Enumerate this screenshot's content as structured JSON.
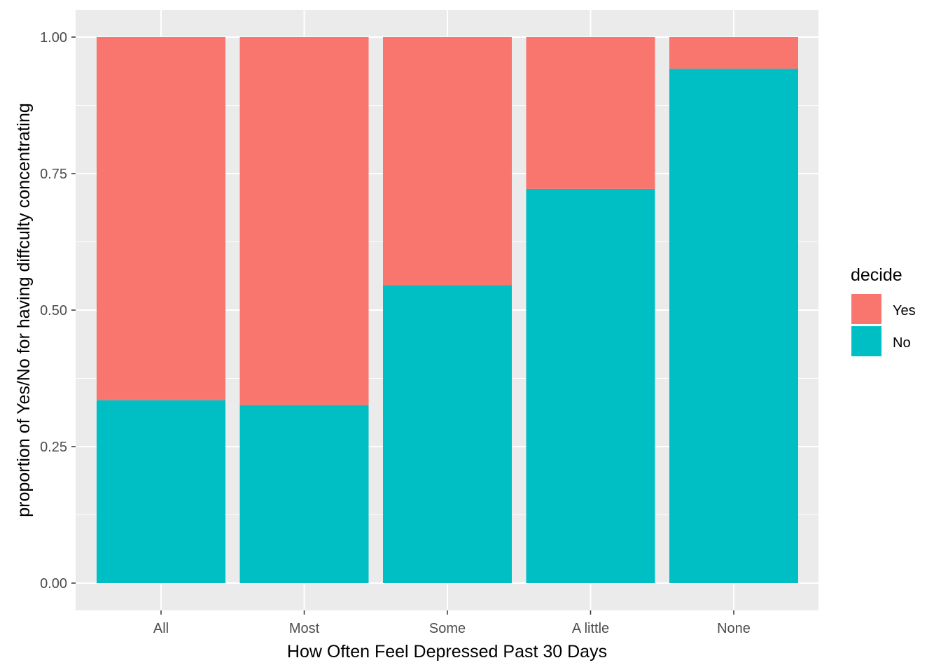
{
  "chart_data": {
    "type": "bar",
    "stacked": true,
    "categories": [
      "All",
      "Most",
      "Some",
      "A little",
      "None"
    ],
    "series": [
      {
        "name": "No",
        "values": [
          0.335,
          0.326,
          0.546,
          0.722,
          0.942
        ],
        "color": "#00BFC4"
      },
      {
        "name": "Yes",
        "values": [
          0.665,
          0.674,
          0.454,
          0.278,
          0.058
        ],
        "color": "#F8766D"
      }
    ],
    "xlabel": "How Often Feel Depressed Past 30 Days",
    "ylabel": "proportion of Yes/No for having diffculty concentrating",
    "ylim": [
      0,
      1
    ],
    "yticks": [
      0,
      0.25,
      0.5,
      0.75,
      1.0
    ],
    "ytick_labels": [
      "0.00",
      "0.25",
      "0.50",
      "0.75",
      "1.00"
    ],
    "grid": true,
    "legend": {
      "title": "decide",
      "position": "right",
      "entries": [
        {
          "name": "Yes",
          "color": "#F8766D"
        },
        {
          "name": "No",
          "color": "#00BFC4"
        }
      ]
    }
  }
}
